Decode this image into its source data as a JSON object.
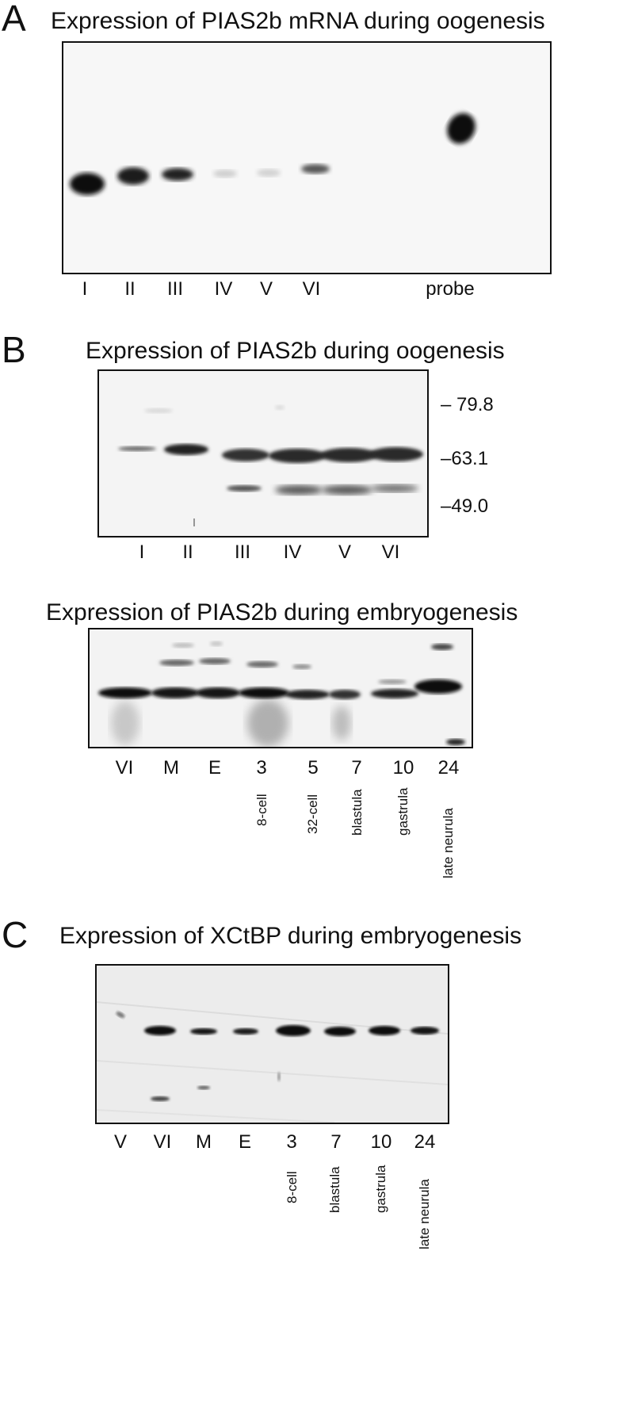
{
  "panels": {
    "A": {
      "letter": "A",
      "title": "Expression of PIAS2b mRNA during oogenesis",
      "lanes": [
        "I",
        "II",
        "III",
        "IV",
        "V",
        "VI",
        "probe"
      ],
      "band_intensity": [
        1.0,
        0.85,
        0.75,
        0.18,
        0.15,
        0.5,
        0.95
      ]
    },
    "B": {
      "letter": "B",
      "oogenesis": {
        "title": "Expression of PIAS2b during oogenesis",
        "lanes": [
          "I",
          "II",
          "III",
          "IV",
          "V",
          "VI"
        ],
        "markers": [
          "– 79.8",
          "–63.1",
          "–49.0"
        ],
        "upper_band_intensity": [
          0.25,
          0.75,
          0.8,
          0.85,
          0.85,
          0.85
        ],
        "lower_band_intensity": [
          0.0,
          0.0,
          0.45,
          0.6,
          0.6,
          0.55
        ]
      },
      "embryogenesis": {
        "title": "Expression of PIAS2b during embryogenesis",
        "lanes": [
          "VI",
          "M",
          "E",
          "3",
          "5",
          "7",
          "10",
          "24"
        ],
        "stages": [
          "",
          "",
          "",
          "8-cell",
          "32-cell",
          "blastula",
          "gastrula",
          "late neurula"
        ]
      }
    },
    "C": {
      "letter": "C",
      "title": "Expression of XCtBP during embryogenesis",
      "lanes": [
        "V",
        "VI",
        "M",
        "E",
        "3",
        "7",
        "10",
        "24"
      ],
      "stages": [
        "",
        "",
        "",
        "",
        "8-cell",
        "blastula",
        "gastrula",
        "late neurula"
      ]
    }
  }
}
